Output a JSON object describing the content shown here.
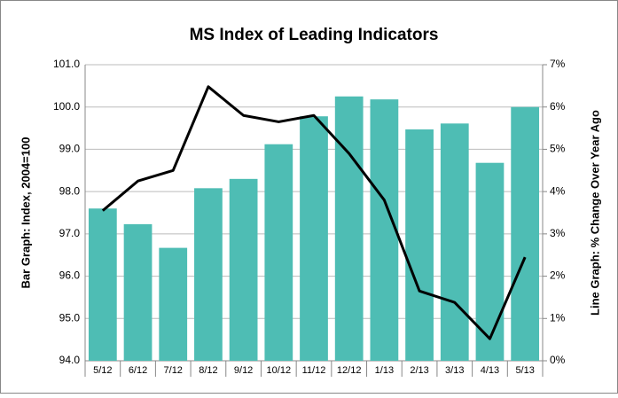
{
  "chart_data": {
    "type": "bar_line",
    "title": "MS Index of Leading Indicators",
    "y_label": "Bar Graph: Index, 2004=100",
    "y2_label": "Line Graph: % Change Over Year Ago",
    "categories": [
      "5/12",
      "6/12",
      "7/12",
      "8/12",
      "9/12",
      "10/12",
      "11/12",
      "12/12",
      "1/13",
      "2/13",
      "3/13",
      "4/13",
      "5/13"
    ],
    "series": [
      {
        "type": "bar",
        "color": "#4ebdb4",
        "values": [
          97.6,
          97.23,
          96.67,
          98.08,
          98.3,
          99.12,
          99.78,
          100.25,
          100.18,
          99.47,
          99.61,
          98.68,
          100.0
        ]
      },
      {
        "type": "line",
        "axis": "y2",
        "color": "#000000",
        "values": [
          3.55,
          4.25,
          4.5,
          6.48,
          5.8,
          5.65,
          5.8,
          4.9,
          3.8,
          1.65,
          1.38,
          0.52,
          2.45
        ]
      }
    ],
    "ylim": [
      94,
      101
    ],
    "yticks": [
      {
        "value": 94,
        "label": "94.0"
      },
      {
        "value": 95,
        "label": "95.0"
      },
      {
        "value": 96,
        "label": "96.0"
      },
      {
        "value": 97,
        "label": "97.0"
      },
      {
        "value": 98,
        "label": "98.0"
      },
      {
        "value": 99,
        "label": "99.0"
      },
      {
        "value": 100,
        "label": "100.0"
      },
      {
        "value": 101,
        "label": "101.0"
      }
    ],
    "y2lim": [
      0,
      7
    ],
    "y2ticks": [
      {
        "value": 0,
        "label": "0%"
      },
      {
        "value": 1,
        "label": "1%"
      },
      {
        "value": 2,
        "label": "2%"
      },
      {
        "value": 3,
        "label": "3%"
      },
      {
        "value": 4,
        "label": "4%"
      },
      {
        "value": 5,
        "label": "5%"
      },
      {
        "value": 6,
        "label": "6%"
      },
      {
        "value": 7,
        "label": "7%"
      }
    ],
    "grid": true
  }
}
